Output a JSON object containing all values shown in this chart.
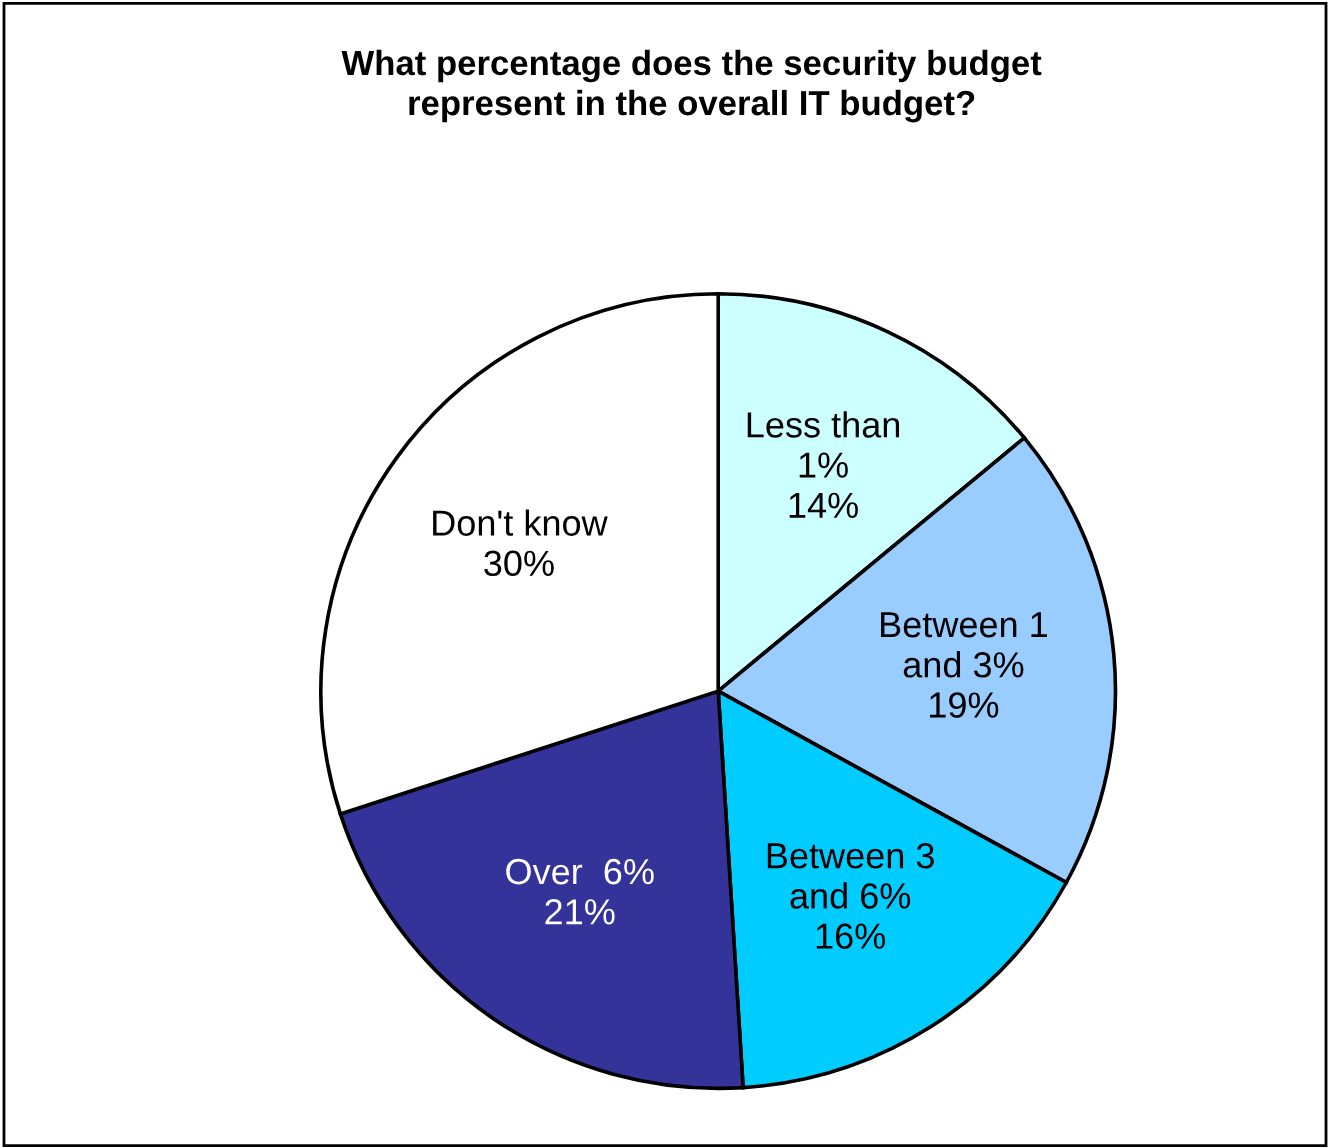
{
  "chart_data": {
    "type": "pie",
    "title": "What percentage does the security budget\nrepresent in the overall IT budget?",
    "categories": [
      "Less than\n1%",
      "Between 1\nand 3%",
      "Between 3\nand 6%",
      "Over  6%",
      "Don't know"
    ],
    "values": [
      14,
      19,
      16,
      21,
      30
    ],
    "colors": [
      "#ccffff",
      "#99ccff",
      "#00ccff",
      "#333399",
      "#ffffff"
    ],
    "value_labels": [
      "14%",
      "19%",
      "16%",
      "21%",
      "30%"
    ],
    "legend": false
  }
}
